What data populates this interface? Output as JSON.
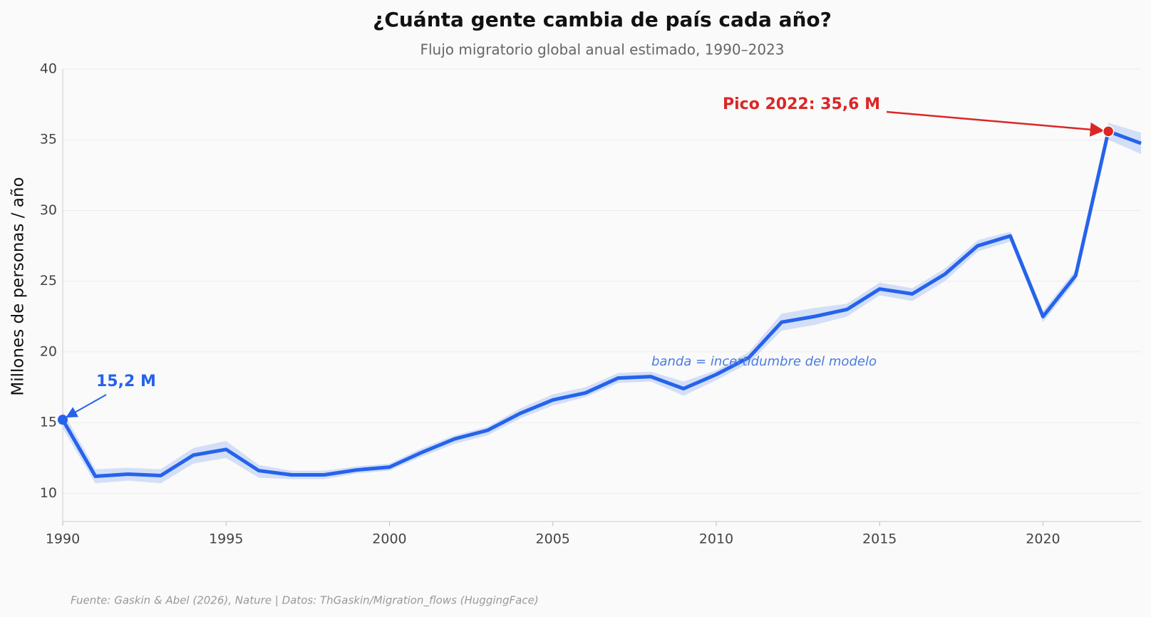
{
  "chart_data": {
    "type": "line",
    "title": "¿Cuánta gente cambia de país cada año?",
    "subtitle": "Flujo migratorio global anual estimado, 1990–2023",
    "y_label": "Millones de personas / año",
    "source": "Fuente: Gaskin & Abel (2026), Nature | Datos: ThGaskin/Migration_flows (HuggingFace)",
    "x": [
      1990,
      1991,
      1992,
      1993,
      1994,
      1995,
      1996,
      1997,
      1998,
      1999,
      2000,
      2001,
      2002,
      2003,
      2004,
      2005,
      2006,
      2007,
      2008,
      2009,
      2010,
      2011,
      2012,
      2013,
      2014,
      2015,
      2016,
      2017,
      2018,
      2019,
      2020,
      2021,
      2022,
      2023
    ],
    "series": [
      {
        "color": "#2563eb",
        "values": [
          15.2,
          11.2,
          11.35,
          11.25,
          12.7,
          13.1,
          11.6,
          11.3,
          11.3,
          11.65,
          11.85,
          12.9,
          13.85,
          14.45,
          15.65,
          16.6,
          17.1,
          18.15,
          18.25,
          17.4,
          18.4,
          19.6,
          22.1,
          22.5,
          23.0,
          24.45,
          24.1,
          25.5,
          27.5,
          28.2,
          22.5,
          25.4,
          35.6,
          34.75
        ]
      }
    ],
    "band": {
      "color": "#c9d7f6",
      "lower": [
        14.6,
        10.7,
        10.9,
        10.7,
        12.1,
        12.5,
        11.1,
        11.0,
        11.0,
        11.4,
        11.6,
        12.6,
        13.5,
        14.1,
        15.3,
        16.2,
        16.8,
        17.8,
        17.9,
        16.9,
        18.0,
        19.2,
        21.5,
        21.9,
        22.5,
        24.0,
        23.6,
        25.0,
        27.1,
        27.8,
        22.1,
        25.0,
        35.0,
        34.0
      ],
      "upper": [
        15.8,
        11.7,
        11.8,
        11.7,
        13.2,
        13.7,
        12.0,
        11.6,
        11.6,
        11.9,
        12.1,
        13.2,
        14.1,
        14.7,
        16.0,
        17.0,
        17.5,
        18.5,
        18.6,
        17.9,
        18.7,
        20.0,
        22.7,
        23.1,
        23.4,
        24.9,
        24.5,
        25.9,
        27.9,
        28.5,
        22.9,
        25.8,
        36.2,
        35.5
      ]
    },
    "annotations": {
      "start": "15,2 M",
      "peak": "Pico 2022: 35,6 M",
      "band": "banda = incertidumbre del modelo"
    },
    "xlim": [
      1990,
      2023
    ],
    "ylim": [
      8,
      40
    ],
    "xticks": [
      1990,
      1995,
      2000,
      2005,
      2010,
      2015,
      2020
    ],
    "yticks": [
      10,
      15,
      20,
      25,
      30,
      35,
      40
    ],
    "grid": true
  }
}
